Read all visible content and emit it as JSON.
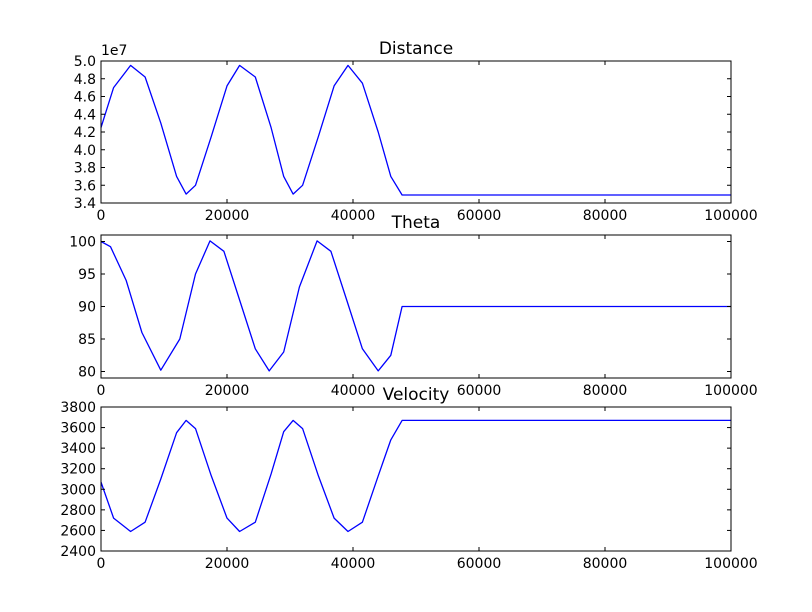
{
  "chart_data": [
    {
      "type": "line",
      "title": "Distance",
      "xlabel": "",
      "ylabel": "",
      "y_offset_label": "1e7",
      "xlim": [
        0,
        100000
      ],
      "ylim": [
        3.4,
        5.0
      ],
      "xticks": [
        0,
        20000,
        40000,
        60000,
        80000,
        100000
      ],
      "xtick_labels": [
        "0",
        "20000",
        "40000",
        "60000",
        "80000",
        "100000"
      ],
      "yticks": [
        3.4,
        3.6,
        3.8,
        4.0,
        4.2,
        4.4,
        4.6,
        4.8,
        5.0
      ],
      "ytick_labels": [
        "3.4",
        "3.6",
        "3.8",
        "4.0",
        "4.2",
        "4.4",
        "4.6",
        "4.8",
        "5.0"
      ],
      "grid": false,
      "line_color": "#0000ff",
      "series": [
        {
          "x": [
            0,
            2000,
            4700,
            7000,
            9500,
            12000,
            13500,
            15000,
            17500,
            20000,
            22000,
            24500,
            27000,
            29000,
            30500,
            32000,
            34500,
            37000,
            39200,
            41500,
            44000,
            46000,
            47800,
            50000,
            60000,
            70000,
            80000,
            90000,
            100000
          ],
          "y": [
            4.25,
            4.7,
            4.95,
            4.82,
            4.3,
            3.7,
            3.5,
            3.6,
            4.15,
            4.72,
            4.95,
            4.82,
            4.25,
            3.7,
            3.5,
            3.6,
            4.15,
            4.72,
            4.95,
            4.75,
            4.2,
            3.7,
            3.49,
            3.49,
            3.49,
            3.49,
            3.49,
            3.49,
            3.49
          ]
        }
      ]
    },
    {
      "type": "line",
      "title": "Theta",
      "xlabel": "",
      "ylabel": "",
      "xlim": [
        0,
        100000
      ],
      "ylim": [
        79,
        101
      ],
      "xticks": [
        0,
        20000,
        40000,
        60000,
        80000,
        100000
      ],
      "xtick_labels": [
        "0",
        "20000",
        "40000",
        "60000",
        "80000",
        "100000"
      ],
      "yticks": [
        80,
        85,
        90,
        95,
        100
      ],
      "ytick_labels": [
        "80",
        "85",
        "90",
        "95",
        "100"
      ],
      "grid": false,
      "line_color": "#0000ff",
      "series": [
        {
          "x": [
            0,
            1500,
            4000,
            6500,
            9500,
            12500,
            15000,
            17300,
            19500,
            22000,
            24500,
            26700,
            29000,
            31500,
            34300,
            36500,
            39000,
            41500,
            44000,
            46000,
            47800,
            50000,
            60000,
            70000,
            80000,
            90000,
            100000
          ],
          "y": [
            100,
            99.2,
            94,
            86,
            80.2,
            85,
            95,
            100.1,
            98.5,
            91,
            83.5,
            80.1,
            83,
            93,
            100.1,
            98.5,
            91,
            83.5,
            80.1,
            82.5,
            90,
            90,
            90,
            90,
            90,
            90,
            90
          ]
        }
      ]
    },
    {
      "type": "line",
      "title": "Velocity",
      "xlabel": "",
      "ylabel": "",
      "xlim": [
        0,
        100000
      ],
      "ylim": [
        2400,
        3800
      ],
      "xticks": [
        0,
        20000,
        40000,
        60000,
        80000,
        100000
      ],
      "xtick_labels": [
        "0",
        "20000",
        "40000",
        "60000",
        "80000",
        "100000"
      ],
      "yticks": [
        2400,
        2600,
        2800,
        3000,
        3200,
        3400,
        3600,
        3800
      ],
      "ytick_labels": [
        "2400",
        "2600",
        "2800",
        "3000",
        "3200",
        "3400",
        "3600",
        "3800"
      ],
      "grid": false,
      "line_color": "#0000ff",
      "series": [
        {
          "x": [
            0,
            2000,
            4700,
            7000,
            9500,
            12000,
            13500,
            15000,
            17500,
            20000,
            22000,
            24500,
            27000,
            29000,
            30500,
            32000,
            34500,
            37000,
            39200,
            41500,
            44000,
            46000,
            47800,
            50000,
            60000,
            70000,
            80000,
            90000,
            100000
          ],
          "y": [
            3070,
            2720,
            2590,
            2680,
            3100,
            3550,
            3670,
            3590,
            3130,
            2720,
            2590,
            2680,
            3150,
            3560,
            3670,
            3590,
            3130,
            2720,
            2590,
            2680,
            3130,
            3480,
            3670,
            3670,
            3670,
            3670,
            3670,
            3670,
            3670
          ]
        }
      ]
    }
  ]
}
